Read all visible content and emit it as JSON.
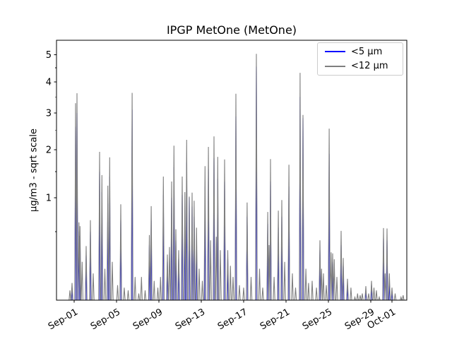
{
  "title": "IPGP MetOne (MetOne)",
  "chart_data": {
    "type": "line",
    "title": "IPGP MetOne (MetOne)",
    "xlabel": "",
    "ylabel": "µg/m3 - sqrt scale",
    "yscale": "sqrt",
    "ylim": [
      0.013,
      5.57
    ],
    "yticks": [
      1,
      2,
      3,
      4,
      5
    ],
    "yticks_minor": [
      0.5,
      1.5,
      2.5,
      3.5,
      4.5
    ],
    "grid": false,
    "legend_position": "upper right",
    "xticks": [
      {
        "day": 0,
        "label": "Sep-01"
      },
      {
        "day": 4,
        "label": "Sep-05"
      },
      {
        "day": 8,
        "label": "Sep-09"
      },
      {
        "day": 12,
        "label": "Sep-13"
      },
      {
        "day": 16,
        "label": "Sep-17"
      },
      {
        "day": 20,
        "label": "Sep-21"
      },
      {
        "day": 24,
        "label": "Sep-25"
      },
      {
        "day": 28,
        "label": "Sep-29"
      },
      {
        "day": 30,
        "label": "Oct-01"
      }
    ],
    "xlim_days": [
      -1.67,
      31.4
    ],
    "x_unit": "days since Sep-01",
    "series": [
      {
        "name": "<5 µm",
        "color": "#0000ff",
        "spike_halfwidth_days": 0.06,
        "spikes": [
          [
            -0.2,
            0.05
          ],
          [
            0.13,
            2.6
          ],
          [
            0.27,
            3.0
          ],
          [
            0.45,
            0.5
          ],
          [
            0.55,
            0.45
          ],
          [
            1.13,
            0.25
          ],
          [
            1.53,
            0.5
          ],
          [
            2.4,
            1.5
          ],
          [
            2.62,
            1.1
          ],
          [
            3.18,
            0.9
          ],
          [
            3.35,
            1.4
          ],
          [
            4.4,
            0.65
          ],
          [
            5.47,
            3.1
          ],
          [
            7.1,
            0.35
          ],
          [
            7.27,
            0.65
          ],
          [
            8.42,
            1.05
          ],
          [
            8.8,
            0.2
          ],
          [
            9.2,
            1.0
          ],
          [
            9.42,
            1.6
          ],
          [
            9.6,
            0.4
          ],
          [
            9.87,
            0.22
          ],
          [
            10.2,
            1.05
          ],
          [
            10.45,
            0.8
          ],
          [
            10.62,
            1.7
          ],
          [
            10.87,
            1.0
          ],
          [
            11.13,
            0.85
          ],
          [
            11.33,
            0.7
          ],
          [
            11.55,
            0.4
          ],
          [
            12.35,
            1.2
          ],
          [
            12.67,
            1.55
          ],
          [
            13.2,
            1.8
          ],
          [
            13.55,
            1.35
          ],
          [
            14.2,
            1.3
          ],
          [
            14.5,
            0.22
          ],
          [
            15.27,
            2.9
          ],
          [
            16.33,
            0.7
          ],
          [
            17.2,
            4.55
          ],
          [
            18.27,
            0.6
          ],
          [
            18.53,
            1.3
          ],
          [
            19.27,
            0.55
          ],
          [
            19.6,
            0.7
          ],
          [
            20.27,
            1.2
          ],
          [
            21.33,
            3.5
          ],
          [
            21.6,
            2.85
          ],
          [
            23.2,
            0.3
          ],
          [
            24.07,
            1.9
          ],
          [
            24.4,
            0.2
          ],
          [
            25.2,
            0.35
          ],
          [
            25.4,
            0.17
          ],
          [
            25.8,
            0.06
          ],
          [
            27.53,
            0.04
          ],
          [
            28.07,
            0.06
          ],
          [
            29.2,
            0.42
          ],
          [
            29.53,
            0.4
          ],
          [
            29.75,
            0.09
          ],
          [
            30.0,
            0.035
          ]
        ]
      },
      {
        "name": "<12 µm",
        "color": "#7f7f7f",
        "spike_halfwidth_days": 0.08,
        "spikes": [
          [
            -0.4,
            0.04
          ],
          [
            -0.2,
            0.07
          ],
          [
            0.13,
            3.3
          ],
          [
            0.27,
            3.62
          ],
          [
            0.45,
            0.62
          ],
          [
            0.55,
            0.57
          ],
          [
            0.75,
            0.2
          ],
          [
            1.13,
            0.34
          ],
          [
            1.53,
            0.65
          ],
          [
            1.8,
            0.12
          ],
          [
            2.4,
            1.95
          ],
          [
            2.62,
            1.43
          ],
          [
            2.9,
            0.15
          ],
          [
            3.18,
            1.22
          ],
          [
            3.35,
            1.82
          ],
          [
            3.6,
            0.2
          ],
          [
            4.1,
            0.06
          ],
          [
            4.4,
            0.89
          ],
          [
            4.73,
            0.05
          ],
          [
            5.1,
            0.04
          ],
          [
            5.47,
            3.63
          ],
          [
            5.75,
            0.1
          ],
          [
            6.1,
            0.03
          ],
          [
            6.35,
            0.1
          ],
          [
            6.7,
            0.04
          ],
          [
            7.1,
            0.46
          ],
          [
            7.27,
            0.86
          ],
          [
            7.55,
            0.08
          ],
          [
            7.9,
            0.05
          ],
          [
            8.15,
            0.1
          ],
          [
            8.42,
            1.4
          ],
          [
            8.8,
            0.26
          ],
          [
            9.0,
            0.33
          ],
          [
            9.2,
            1.3
          ],
          [
            9.42,
            2.1
          ],
          [
            9.6,
            0.53
          ],
          [
            9.87,
            0.3
          ],
          [
            10.2,
            1.4
          ],
          [
            10.45,
            1.1
          ],
          [
            10.62,
            2.25
          ],
          [
            10.87,
            1.02
          ],
          [
            11.13,
            1.09
          ],
          [
            11.33,
            0.95
          ],
          [
            11.55,
            0.55
          ],
          [
            11.8,
            0.15
          ],
          [
            12.1,
            0.08
          ],
          [
            12.35,
            1.62
          ],
          [
            12.67,
            2.07
          ],
          [
            12.88,
            0.4
          ],
          [
            13.2,
            2.34
          ],
          [
            13.42,
            0.44
          ],
          [
            13.55,
            1.83
          ],
          [
            13.8,
            0.3
          ],
          [
            14.2,
            1.77
          ],
          [
            14.5,
            0.3
          ],
          [
            14.75,
            0.17
          ],
          [
            15.0,
            0.1
          ],
          [
            15.27,
            3.6
          ],
          [
            15.6,
            0.06
          ],
          [
            16.0,
            0.05
          ],
          [
            16.33,
            0.92
          ],
          [
            16.7,
            0.1
          ],
          [
            17.2,
            5.03
          ],
          [
            17.5,
            0.15
          ],
          [
            17.8,
            0.05
          ],
          [
            18.27,
            0.77
          ],
          [
            18.4,
            0.35
          ],
          [
            18.53,
            1.78
          ],
          [
            18.87,
            0.1
          ],
          [
            19.27,
            0.79
          ],
          [
            19.6,
            0.96
          ],
          [
            19.87,
            0.2
          ],
          [
            20.27,
            1.65
          ],
          [
            20.6,
            0.12
          ],
          [
            20.9,
            0.05
          ],
          [
            21.33,
            4.32
          ],
          [
            21.6,
            2.94
          ],
          [
            21.87,
            0.15
          ],
          [
            22.13,
            0.07
          ],
          [
            22.47,
            0.08
          ],
          [
            22.87,
            0.05
          ],
          [
            23.2,
            0.4
          ],
          [
            23.35,
            0.15
          ],
          [
            23.53,
            0.12
          ],
          [
            23.8,
            0.06
          ],
          [
            24.07,
            2.55
          ],
          [
            24.25,
            0.28
          ],
          [
            24.4,
            0.27
          ],
          [
            24.55,
            0.22
          ],
          [
            24.8,
            0.1
          ],
          [
            25.2,
            0.51
          ],
          [
            25.4,
            0.23
          ],
          [
            25.8,
            0.09
          ],
          [
            26.13,
            0.05
          ],
          [
            26.5,
            0.02
          ],
          [
            26.75,
            0.03
          ],
          [
            27.0,
            0.025
          ],
          [
            27.2,
            0.03
          ],
          [
            27.53,
            0.056
          ],
          [
            27.8,
            0.03
          ],
          [
            28.07,
            0.08
          ],
          [
            28.3,
            0.05
          ],
          [
            28.53,
            0.04
          ],
          [
            28.8,
            0.02
          ],
          [
            29.2,
            0.545
          ],
          [
            29.35,
            0.12
          ],
          [
            29.53,
            0.54
          ],
          [
            29.75,
            0.12
          ],
          [
            30.0,
            0.05
          ],
          [
            30.3,
            0.03
          ],
          [
            30.85,
            0.02
          ],
          [
            31.05,
            0.025
          ]
        ]
      }
    ]
  },
  "legend": {
    "entries": [
      {
        "label": "<5 µm",
        "color": "#0000ff"
      },
      {
        "label": "<12 µm",
        "color": "#7f7f7f"
      }
    ]
  }
}
